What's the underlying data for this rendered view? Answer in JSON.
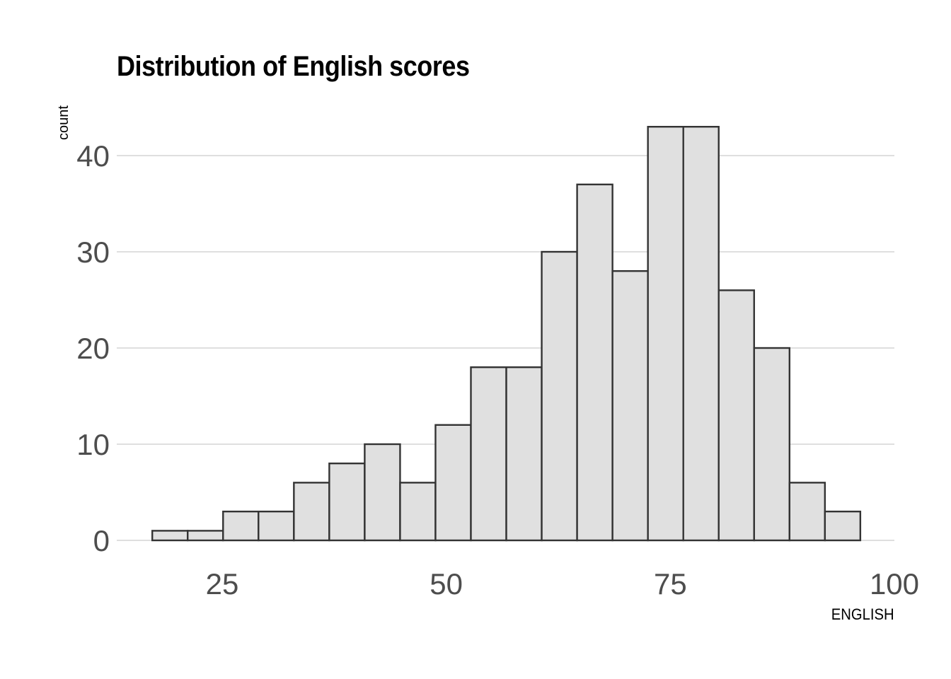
{
  "chart_data": {
    "type": "bar",
    "title": "Distribution of English scores",
    "xlabel": "ENGLISH",
    "ylabel": "count",
    "bin_width": 3.95,
    "bins": [
      {
        "start": 17.2,
        "end": 21.15,
        "count": 1
      },
      {
        "start": 21.15,
        "end": 25.1,
        "count": 1
      },
      {
        "start": 25.1,
        "end": 29.05,
        "count": 3
      },
      {
        "start": 29.05,
        "end": 33.0,
        "count": 3
      },
      {
        "start": 33.0,
        "end": 36.95,
        "count": 6
      },
      {
        "start": 36.95,
        "end": 40.9,
        "count": 8
      },
      {
        "start": 40.9,
        "end": 44.85,
        "count": 10
      },
      {
        "start": 44.85,
        "end": 48.8,
        "count": 6
      },
      {
        "start": 48.8,
        "end": 52.75,
        "count": 12
      },
      {
        "start": 52.75,
        "end": 56.7,
        "count": 18
      },
      {
        "start": 56.7,
        "end": 60.65,
        "count": 18
      },
      {
        "start": 60.65,
        "end": 64.6,
        "count": 30
      },
      {
        "start": 64.6,
        "end": 68.55,
        "count": 37
      },
      {
        "start": 68.55,
        "end": 72.5,
        "count": 28
      },
      {
        "start": 72.5,
        "end": 76.45,
        "count": 43
      },
      {
        "start": 76.45,
        "end": 80.4,
        "count": 43
      },
      {
        "start": 80.4,
        "end": 84.35,
        "count": 26
      },
      {
        "start": 84.35,
        "end": 88.3,
        "count": 20
      },
      {
        "start": 88.3,
        "end": 92.25,
        "count": 6
      },
      {
        "start": 92.25,
        "end": 96.2,
        "count": 3
      }
    ],
    "xlim": [
      13.4,
      100.0
    ],
    "ylim": [
      0,
      43
    ],
    "x_ticks": [
      25,
      50,
      75,
      100
    ],
    "y_ticks": [
      0,
      10,
      20,
      30,
      40
    ],
    "grid": "horizontal",
    "legend": "none",
    "colors": {
      "bar_fill": "#e0e0e0",
      "bar_stroke": "#333333",
      "grid": "#cccccc",
      "tick_text": "#4d4d4d",
      "title": "#000000"
    }
  }
}
